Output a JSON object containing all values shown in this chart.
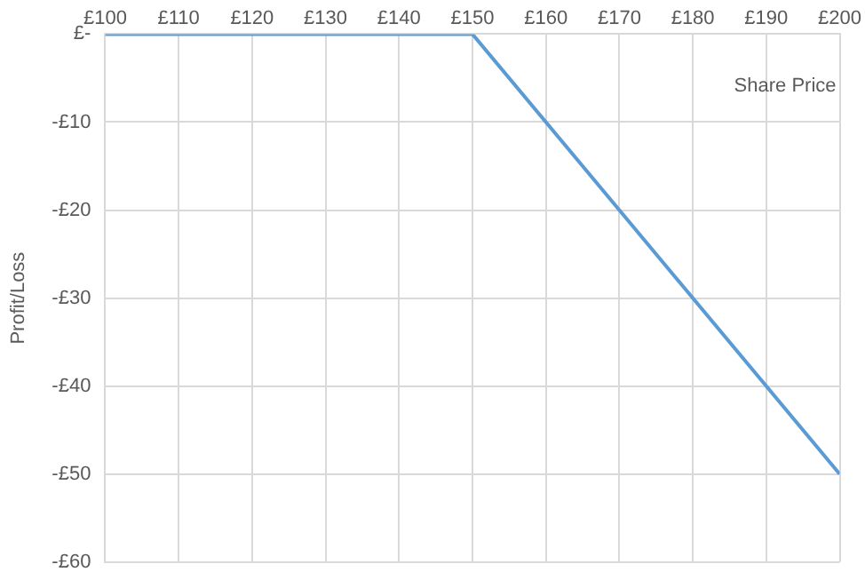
{
  "chart_data": {
    "type": "line",
    "xlabel": "Share Price",
    "ylabel": "Profit/Loss",
    "x": [
      100,
      150,
      200
    ],
    "series": [
      {
        "color": "#5b9bd5",
        "values": [
          0,
          0,
          -50
        ]
      }
    ],
    "xlim": [
      100,
      200
    ],
    "xticks": [
      {
        "value": 100,
        "label": "£100"
      },
      {
        "value": 110,
        "label": "£110"
      },
      {
        "value": 120,
        "label": "£120"
      },
      {
        "value": 130,
        "label": "£130"
      },
      {
        "value": 140,
        "label": "£140"
      },
      {
        "value": 150,
        "label": "£150"
      },
      {
        "value": 160,
        "label": "£160"
      },
      {
        "value": 170,
        "label": "£170"
      },
      {
        "value": 180,
        "label": "£180"
      },
      {
        "value": 190,
        "label": "£190"
      },
      {
        "value": 200,
        "label": "£200"
      }
    ],
    "ylim": [
      -60,
      0
    ],
    "yticks": [
      {
        "value": 0,
        "label": "£-"
      },
      {
        "value": -10,
        "label": "-£10"
      },
      {
        "value": -20,
        "label": "-£20"
      },
      {
        "value": -30,
        "label": "-£30"
      },
      {
        "value": -40,
        "label": "-£40"
      },
      {
        "value": -50,
        "label": "-£50"
      },
      {
        "value": -60,
        "label": "-£60"
      }
    ],
    "grid": true,
    "legend": false,
    "marker": "none",
    "line_style": "solid"
  }
}
